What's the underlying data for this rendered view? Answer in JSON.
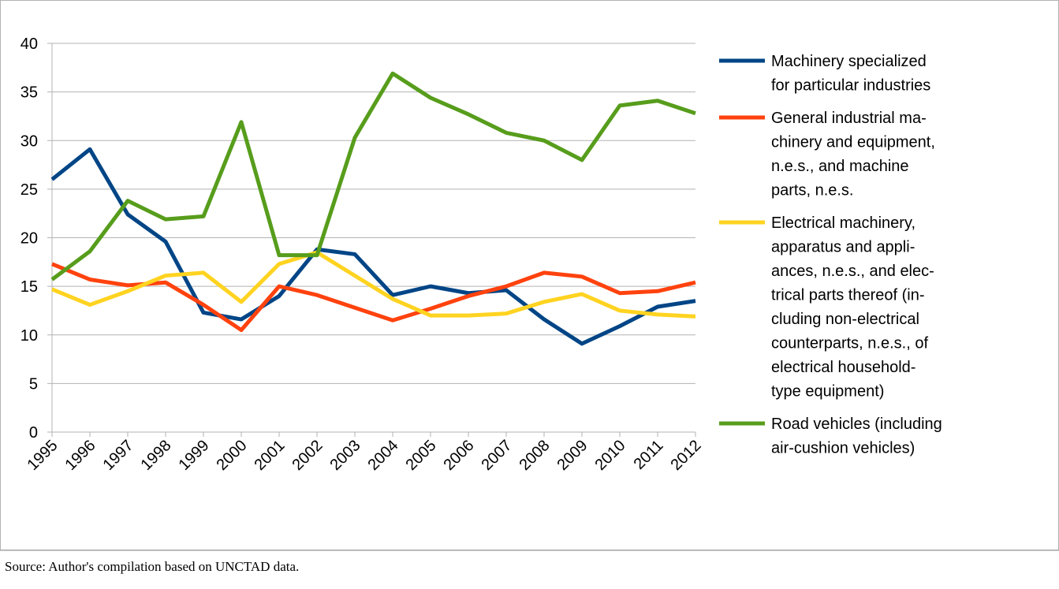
{
  "chart_data": {
    "type": "line",
    "x": [
      "1995",
      "1996",
      "1997",
      "1998",
      "1999",
      "2000",
      "2001",
      "2002",
      "2003",
      "2004",
      "2005",
      "2006",
      "2007",
      "2008",
      "2009",
      "2010",
      "2011",
      "2012"
    ],
    "series": [
      {
        "name": "Machinery specialized\nfor particular industries",
        "color": "#004586",
        "values": [
          26,
          29.1,
          22.4,
          19.6,
          12.3,
          11.6,
          14,
          18.8,
          18.3,
          14.1,
          15,
          14.3,
          14.6,
          11.6,
          9.1,
          10.9,
          12.9,
          13.5
        ]
      },
      {
        "name": "General industrial ma-\nchinery and equipment,\nn.e.s., and machine\nparts, n.e.s.",
        "color": "#ff420e",
        "values": [
          17.3,
          15.7,
          15.1,
          15.4,
          13.1,
          10.5,
          15,
          14.1,
          12.8,
          11.5,
          12.7,
          14,
          15,
          16.4,
          16,
          14.3,
          14.5,
          15.4
        ]
      },
      {
        "name": "Electrical machinery,\napparatus and appli-\nances, n.e.s., and elec-\ntrical parts thereof (in-\ncluding non-electrical\ncounterparts, n.e.s., of\nelectrical household-\ntype equipment)",
        "color": "#ffd320",
        "values": [
          14.7,
          13.1,
          14.5,
          16.1,
          16.4,
          13.4,
          17.3,
          18.5,
          16.1,
          13.7,
          12,
          12,
          12.2,
          13.4,
          14.2,
          12.5,
          12.1,
          11.9
        ]
      },
      {
        "name": "Road vehicles (including\nair-cushion vehicles)",
        "color": "#579d1c",
        "values": [
          15.7,
          18.6,
          23.8,
          21.9,
          22.2,
          31.9,
          18.2,
          18.2,
          30.3,
          36.9,
          34.4,
          32.7,
          30.8,
          30,
          28,
          33.6,
          34.1,
          32.8
        ]
      }
    ],
    "ylim": [
      0,
      40
    ],
    "yticks": [
      0,
      5,
      10,
      15,
      20,
      25,
      30,
      35,
      40
    ],
    "grid": true,
    "legend": "right",
    "source": "Source: Author's compilation based on UNCTAD data."
  }
}
